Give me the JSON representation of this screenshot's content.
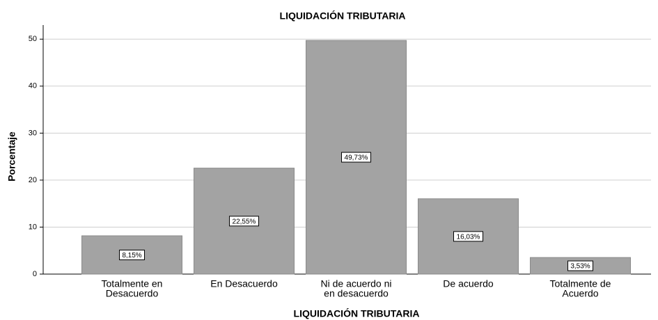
{
  "chart_data": {
    "type": "bar",
    "title": "LIQUIDACIÓN TRIBUTARIA",
    "x_label": "LIQUIDACIÓN TRIBUTARIA",
    "y_label": "Porcentaje",
    "categories": [
      [
        "Totalmente en",
        "Desacuerdo"
      ],
      [
        "En Desacuerdo"
      ],
      [
        "Ni de acuerdo ni",
        "en desacuerdo"
      ],
      [
        "De acuerdo"
      ],
      [
        "Totalmente de",
        "Acuerdo"
      ]
    ],
    "values": [
      8.15,
      22.55,
      49.73,
      16.03,
      3.53
    ],
    "value_labels": [
      "8,15%",
      "22,55%",
      "49,73%",
      "16,03%",
      "3,53%"
    ],
    "color": "#a3a3a3",
    "ylim": [
      0,
      53
    ],
    "yticks": [
      0,
      10,
      20,
      30,
      40,
      50
    ],
    "grid": true
  }
}
